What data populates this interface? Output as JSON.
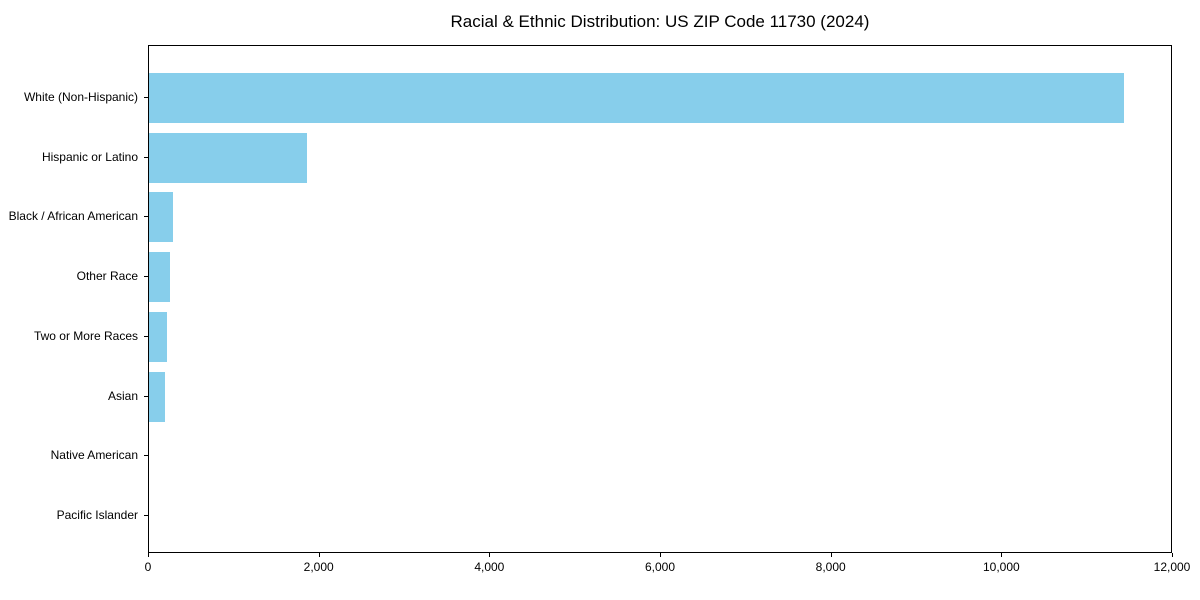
{
  "chart_data": {
    "type": "bar",
    "orientation": "horizontal",
    "title": "Racial & Ethnic Distribution: US ZIP Code 11730 (2024)",
    "categories": [
      "White (Non-Hispanic)",
      "Hispanic or Latino",
      "Black / African American",
      "Other Race",
      "Two or More Races",
      "Asian",
      "Native American",
      "Pacific Islander"
    ],
    "values": [
      11430,
      1850,
      280,
      245,
      210,
      185,
      0,
      0
    ],
    "xlabel": "",
    "ylabel": "",
    "xlim": [
      0,
      12000
    ],
    "x_ticks": {
      "values": [
        0,
        2000,
        4000,
        6000,
        8000,
        10000,
        12000
      ],
      "labels": [
        "0",
        "2,000",
        "4,000",
        "6,000",
        "8,000",
        "10,000",
        "12,000"
      ]
    },
    "bar_color": "#87CEEB",
    "grid": false,
    "legend_position": "none"
  }
}
